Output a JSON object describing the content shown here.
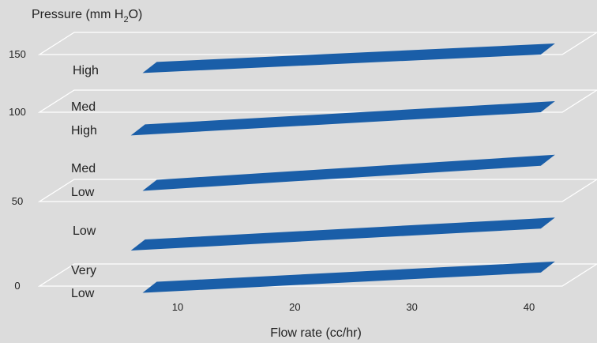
{
  "chart_data": {
    "type": "area",
    "ylabel": "Pressure (mm H",
    "ylabel_sub": "2",
    "ylabel_end": "O)",
    "xlabel": "Flow rate (cc/hr)",
    "x_ticks": [
      "10",
      "20",
      "30",
      "40"
    ],
    "y_ticks": [
      "150",
      "100",
      "50",
      "0"
    ],
    "pressure_levels": [
      150,
      100,
      50,
      0
    ],
    "xlim": [
      3,
      43
    ],
    "grid": false,
    "colors": {
      "band": "#1a5ea8",
      "plane": "#ffffff",
      "background": "#dcdcdc"
    },
    "bands": [
      {
        "label": "High",
        "x": [
          7,
          41
        ],
        "pressure_start": 134,
        "pressure_end": 150
      },
      {
        "label": "Med High",
        "x": [
          6,
          41
        ],
        "pressure_start": 87,
        "pressure_end": 100
      },
      {
        "label": "Med Low",
        "x": [
          7,
          41
        ],
        "pressure_start": 56,
        "pressure_end": 70
      },
      {
        "label": "Low",
        "x": [
          6,
          41
        ],
        "pressure_start": 21,
        "pressure_end": 34
      },
      {
        "label": "Very Low",
        "x": [
          7,
          41
        ],
        "pressure_start": -4,
        "pressure_end": 8
      }
    ],
    "band_labels": [
      {
        "line1": "High",
        "line2": ""
      },
      {
        "line1": "Med",
        "line2": "High"
      },
      {
        "line1": "Med",
        "line2": "Low"
      },
      {
        "line1": "Low",
        "line2": ""
      },
      {
        "line1": "Very",
        "line2": "Low"
      }
    ]
  }
}
